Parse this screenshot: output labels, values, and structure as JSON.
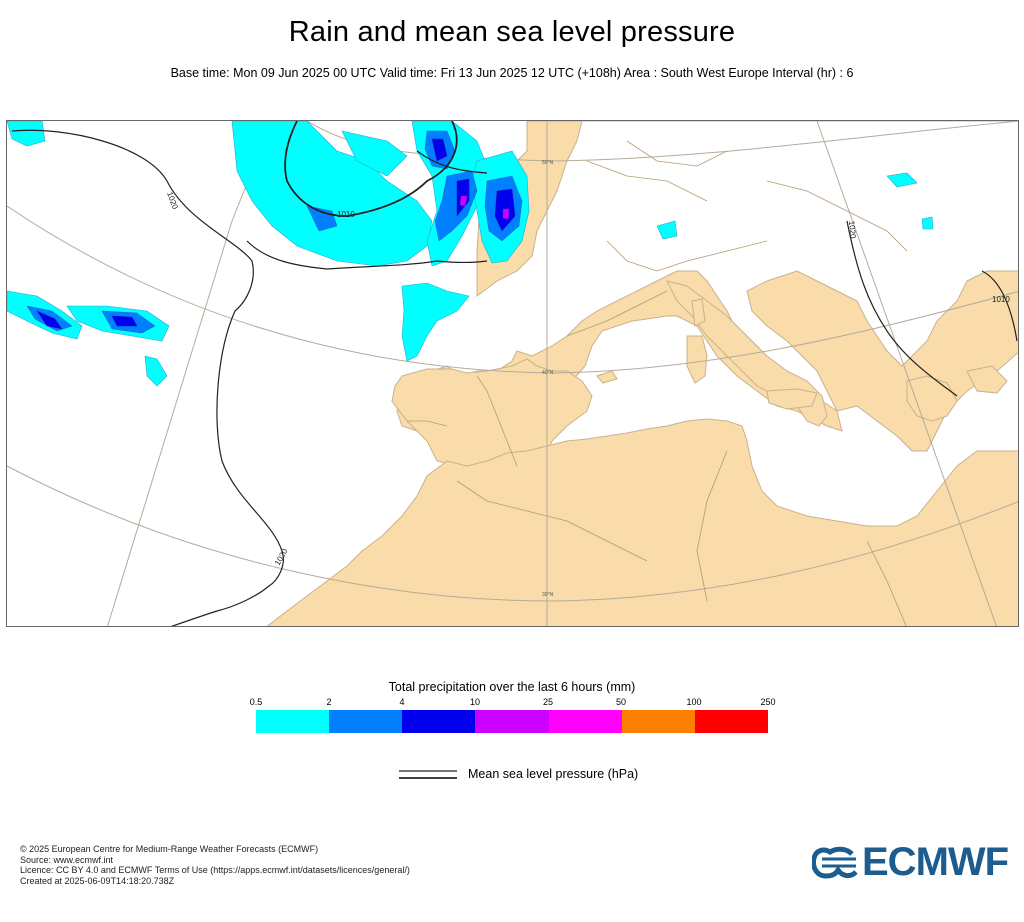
{
  "title": "Rain and mean sea level pressure",
  "subtitle": "Base time: Mon 09 Jun 2025 00 UTC Valid time: Fri 13 Jun 2025 12 UTC (+108h) Area : South West Europe Interval (hr) : 6",
  "map": {
    "isobar_labels": [
      "1020",
      "1010",
      "1020",
      "1020",
      "1010"
    ],
    "lat_labels": [
      "50°N",
      "40°N",
      "30°N"
    ],
    "colors": {
      "land": "#f9dca9",
      "sea": "#ffffff",
      "coast": "#c9b18f"
    }
  },
  "legend": {
    "title": "Total precipitation over the last 6 hours (mm)",
    "ticks": [
      "0.5",
      "2",
      "4",
      "10",
      "25",
      "50",
      "100",
      "250"
    ],
    "colors": [
      "#00ffff",
      "#0080ff",
      "#0000ee",
      "#cc00ff",
      "#ff00ff",
      "#ff8000",
      "#ff0000"
    ],
    "mslp_label": "Mean sea level pressure (hPa)"
  },
  "footer": [
    "© 2025 European Centre for Medium-Range Weather Forecasts (ECMWF)",
    "Source: www.ecmwf.int",
    "Licence: CC BY 4.0 and ECMWF Terms of Use (https://apps.ecmwf.int/datasets/licences/general/)",
    "Created at 2025-06-09T14:18:20.738Z"
  ],
  "logo_text": "ECMWF"
}
